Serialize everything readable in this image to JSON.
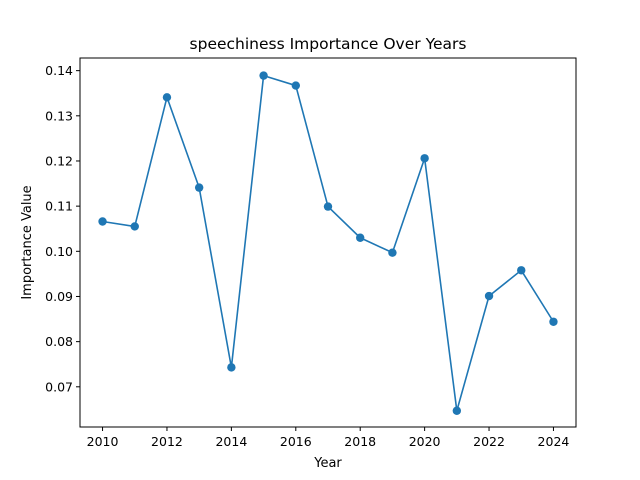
{
  "chart_data": {
    "type": "line",
    "title": "speechiness Importance Over Years",
    "xlabel": "Year",
    "ylabel": "Importance Value",
    "x": [
      2010,
      2011,
      2012,
      2013,
      2014,
      2015,
      2016,
      2017,
      2018,
      2019,
      2020,
      2021,
      2022,
      2023,
      2024
    ],
    "series": [
      {
        "name": "",
        "values": [
          0.1066,
          0.1055,
          0.1341,
          0.1141,
          0.0743,
          0.1389,
          0.1367,
          0.1099,
          0.103,
          0.0997,
          0.1206,
          0.0647,
          0.0901,
          0.0958,
          0.0844
        ],
        "color": "#1f77b4",
        "marker": "circle"
      }
    ],
    "xlim": [
      2009.3,
      2024.7
    ],
    "ylim": [
      0.0611,
      0.1428
    ],
    "xticks": [
      2010,
      2012,
      2014,
      2016,
      2018,
      2020,
      2022,
      2024
    ],
    "xtick_labels": [
      "2010",
      "2012",
      "2014",
      "2016",
      "2018",
      "2020",
      "2022",
      "2024"
    ],
    "yticks": [
      0.07,
      0.08,
      0.09,
      0.1,
      0.11,
      0.12,
      0.13,
      0.14
    ],
    "ytick_labels": [
      "0.07",
      "0.08",
      "0.09",
      "0.10",
      "0.11",
      "0.12",
      "0.13",
      "0.14"
    ],
    "grid": false,
    "legend": "none"
  }
}
